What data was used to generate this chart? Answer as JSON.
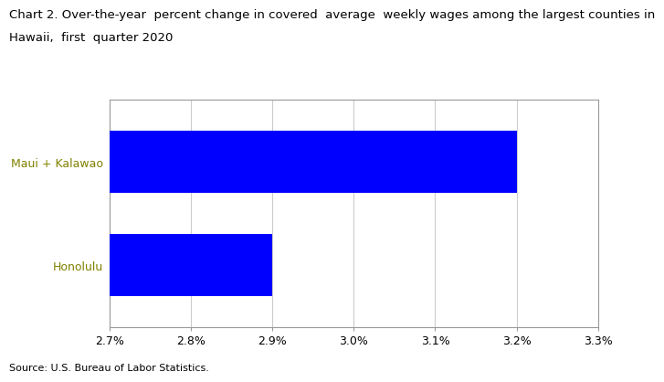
{
  "title_line1": "Chart 2. Over-the-year  percent change in covered  average  weekly wages among the largest counties in",
  "title_line2": "Hawaii,  first  quarter 2020",
  "categories": [
    "Honolulu",
    "Maui + Kalawao"
  ],
  "values": [
    2.9,
    3.2
  ],
  "bar_color": "#0000FF",
  "xlim": [
    2.7,
    3.3
  ],
  "xticks": [
    2.7,
    2.8,
    2.9,
    3.0,
    3.1,
    3.2,
    3.3
  ],
  "xtick_labels": [
    "2.7%",
    "2.8%",
    "2.9%",
    "3.0%",
    "3.1%",
    "3.2%",
    "3.3%"
  ],
  "ytick_color": "#808000",
  "xlabel_fontsize": 9,
  "title_fontsize": 9.5,
  "source_text": "Source: U.S. Bureau of Labor Statistics.",
  "source_fontsize": 8,
  "bar_height": 0.6,
  "grid_color": "#cccccc",
  "spine_color": "#999999",
  "background_color": "#ffffff"
}
